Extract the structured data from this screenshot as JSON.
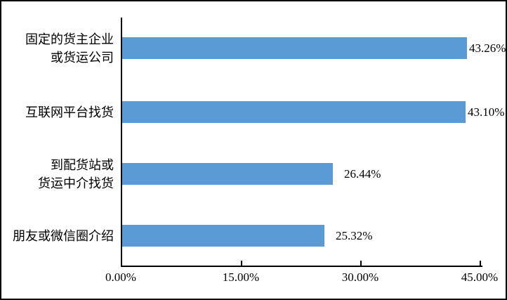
{
  "chart_data": {
    "type": "bar",
    "orientation": "horizontal",
    "title": "",
    "bar_color": "#5B9BD5",
    "axis_color": "#000000",
    "grid": false,
    "legend": false,
    "x_axis": {
      "min": 0,
      "max": 45,
      "ticks": [
        {
          "value": 0,
          "label": "0.00%"
        },
        {
          "value": 15,
          "label": "15.00%"
        },
        {
          "value": 30,
          "label": "30.00%"
        },
        {
          "value": 45,
          "label": "45.00%"
        }
      ]
    },
    "rows": [
      {
        "label_lines": [
          "固定的货主企业",
          "或货运公司"
        ],
        "value": 43.26,
        "value_label": "43.26%"
      },
      {
        "label_lines": [
          "互联网平台找货"
        ],
        "value": 43.1,
        "value_label": "43.10%"
      },
      {
        "label_lines": [
          "到配货站或",
          "货运中介找货"
        ],
        "value": 26.44,
        "value_label": "26.44%"
      },
      {
        "label_lines": [
          "朋友或微信圈介绍"
        ],
        "value": 25.32,
        "value_label": "25.32%"
      }
    ]
  }
}
